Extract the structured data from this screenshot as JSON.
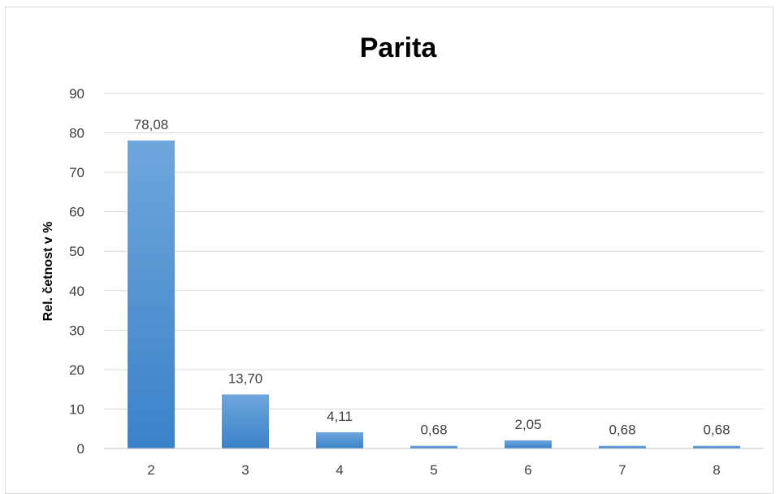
{
  "chart_data": {
    "type": "bar",
    "title": "Parita",
    "xlabel": "",
    "ylabel": "Rel. četnost v %",
    "categories": [
      "2",
      "3",
      "4",
      "5",
      "6",
      "7",
      "8"
    ],
    "values": [
      78.08,
      13.7,
      4.11,
      0.68,
      2.05,
      0.68,
      0.68
    ],
    "data_labels": [
      "78,08",
      "13,70",
      "4,11",
      "0,68",
      "2,05",
      "0,68",
      "0,68"
    ],
    "ylim": [
      0,
      90
    ],
    "y_ticks": [
      "0",
      "10",
      "20",
      "30",
      "40",
      "50",
      "60",
      "70",
      "80",
      "90"
    ],
    "grid": true,
    "legend": "none",
    "colors": {
      "bar_top": "#6fa6dc",
      "bar_bottom": "#3a82c9"
    }
  }
}
